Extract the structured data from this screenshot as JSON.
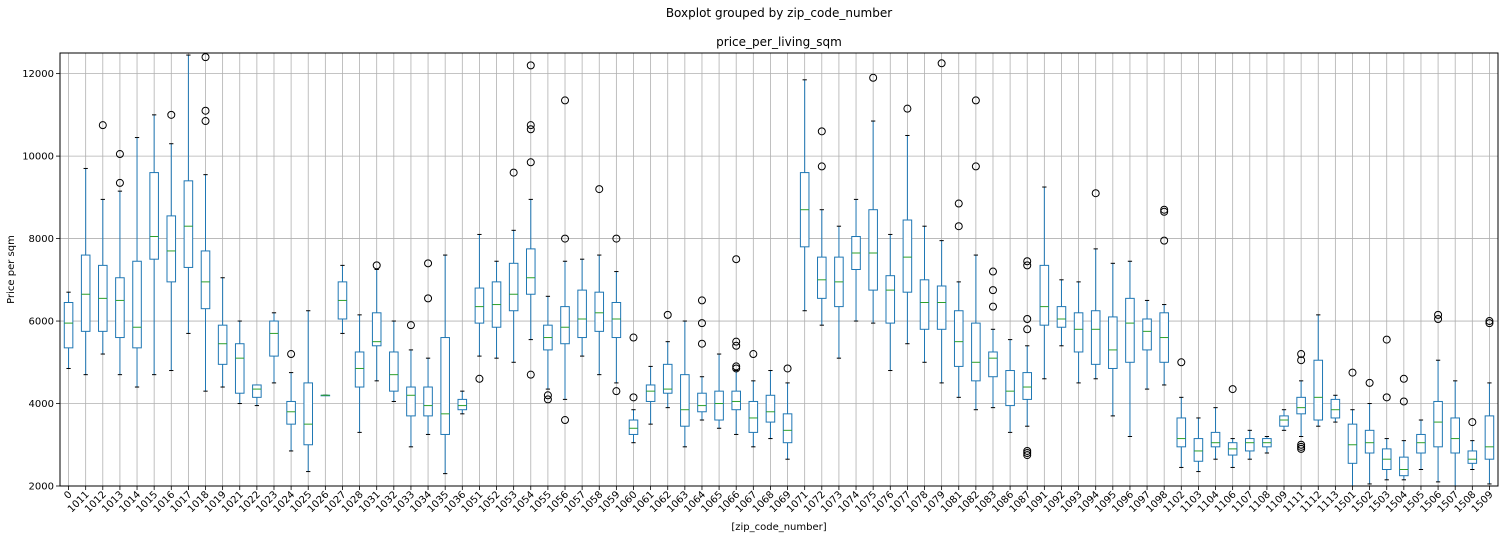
{
  "chart_data": {
    "type": "boxplot",
    "suptitle": "Boxplot grouped by zip_code_number",
    "title": "price_per_living_sqm",
    "xlabel": "[zip_code_number]",
    "ylabel": "Price per sqm",
    "ylim": [
      2000,
      12500
    ],
    "yticks": [
      2000,
      4000,
      6000,
      8000,
      10000,
      12000
    ],
    "grid": true,
    "colors": {
      "box": "#1f77b4",
      "median": "#2ca02c",
      "grid": "#b0b0b0",
      "outlier": "#000000"
    },
    "categories": [
      "0",
      "1011",
      "1012",
      "1013",
      "1014",
      "1015",
      "1016",
      "1017",
      "1018",
      "1019",
      "1021",
      "1022",
      "1023",
      "1024",
      "1025",
      "1026",
      "1027",
      "1028",
      "1031",
      "1032",
      "1033",
      "1034",
      "1035",
      "1036",
      "1051",
      "1052",
      "1053",
      "1054",
      "1055",
      "1056",
      "1057",
      "1058",
      "1059",
      "1060",
      "1061",
      "1062",
      "1063",
      "1064",
      "1065",
      "1066",
      "1067",
      "1068",
      "1069",
      "1071",
      "1072",
      "1073",
      "1074",
      "1075",
      "1076",
      "1077",
      "1078",
      "1079",
      "1081",
      "1082",
      "1083",
      "1086",
      "1087",
      "1091",
      "1092",
      "1093",
      "1094",
      "1095",
      "1096",
      "1097",
      "1098",
      "1102",
      "1103",
      "1104",
      "1106",
      "1107",
      "1108",
      "1109",
      "1111",
      "1112",
      "1113",
      "1501",
      "1502",
      "1503",
      "1504",
      "1505",
      "1506",
      "1507",
      "1508",
      "1509"
    ],
    "boxes": [
      {
        "wl": 4850,
        "q1": 5350,
        "med": 5950,
        "q3": 6450,
        "wh": 6700,
        "fl": []
      },
      {
        "wl": 4700,
        "q1": 5750,
        "med": 6650,
        "q3": 7600,
        "wh": 9700,
        "fl": []
      },
      {
        "wl": 5200,
        "q1": 5750,
        "med": 6550,
        "q3": 7350,
        "wh": 8950,
        "fl": [
          10750
        ]
      },
      {
        "wl": 4700,
        "q1": 5600,
        "med": 6500,
        "q3": 7050,
        "wh": 9150,
        "fl": [
          9350,
          10050
        ]
      },
      {
        "wl": 4400,
        "q1": 5350,
        "med": 5850,
        "q3": 7450,
        "wh": 10450,
        "fl": []
      },
      {
        "wl": 4700,
        "q1": 7500,
        "med": 8050,
        "q3": 9600,
        "wh": 11000,
        "fl": []
      },
      {
        "wl": 4800,
        "q1": 6950,
        "med": 7700,
        "q3": 8550,
        "wh": 10300,
        "fl": [
          11000
        ]
      },
      {
        "wl": 5700,
        "q1": 7300,
        "med": 8300,
        "q3": 9400,
        "wh": 12450,
        "fl": []
      },
      {
        "wl": 4300,
        "q1": 6300,
        "med": 6950,
        "q3": 7700,
        "wh": 9550,
        "fl": [
          10850,
          11100,
          12400
        ]
      },
      {
        "wl": 4400,
        "q1": 4950,
        "med": 5450,
        "q3": 5900,
        "wh": 7050,
        "fl": []
      },
      {
        "wl": 4000,
        "q1": 4250,
        "med": 5100,
        "q3": 5450,
        "wh": 6000,
        "fl": []
      },
      {
        "wl": 3950,
        "q1": 4150,
        "med": 4350,
        "q3": 4450,
        "wh": 4450,
        "fl": []
      },
      {
        "wl": 4500,
        "q1": 5150,
        "med": 5700,
        "q3": 6000,
        "wh": 6200,
        "fl": []
      },
      {
        "wl": 2850,
        "q1": 3500,
        "med": 3800,
        "q3": 4050,
        "wh": 4750,
        "fl": [
          5200
        ]
      },
      {
        "wl": 2350,
        "q1": 3000,
        "med": 3500,
        "q3": 4500,
        "wh": 6250,
        "fl": []
      },
      {
        "wl": 4200,
        "q1": 4200,
        "med": 4200,
        "q3": 4200,
        "wh": 4200,
        "fl": []
      },
      {
        "wl": 5700,
        "q1": 6050,
        "med": 6500,
        "q3": 6950,
        "wh": 7350,
        "fl": []
      },
      {
        "wl": 3300,
        "q1": 4400,
        "med": 4850,
        "q3": 5250,
        "wh": 6150,
        "fl": []
      },
      {
        "wl": 4550,
        "q1": 5400,
        "med": 5500,
        "q3": 6200,
        "wh": 7250,
        "fl": [
          7350
        ]
      },
      {
        "wl": 4050,
        "q1": 4300,
        "med": 4700,
        "q3": 5250,
        "wh": 6000,
        "fl": []
      },
      {
        "wl": 2950,
        "q1": 3700,
        "med": 4200,
        "q3": 4400,
        "wh": 5300,
        "fl": [
          5900
        ]
      },
      {
        "wl": 3250,
        "q1": 3700,
        "med": 3950,
        "q3": 4400,
        "wh": 5100,
        "fl": [
          6550,
          7400
        ]
      },
      {
        "wl": 2300,
        "q1": 3250,
        "med": 3750,
        "q3": 5600,
        "wh": 7600,
        "fl": []
      },
      {
        "wl": 3750,
        "q1": 3850,
        "med": 3950,
        "q3": 4100,
        "wh": 4300,
        "fl": []
      },
      {
        "wl": 5150,
        "q1": 5950,
        "med": 6350,
        "q3": 6800,
        "wh": 8100,
        "fl": [
          4600
        ]
      },
      {
        "wl": 5100,
        "q1": 5850,
        "med": 6400,
        "q3": 6950,
        "wh": 7450,
        "fl": []
      },
      {
        "wl": 5000,
        "q1": 6250,
        "med": 6650,
        "q3": 7400,
        "wh": 8200,
        "fl": [
          9600
        ]
      },
      {
        "wl": 5550,
        "q1": 6650,
        "med": 7050,
        "q3": 7750,
        "wh": 8950,
        "fl": [
          4700,
          9850,
          10650,
          10750,
          12200
        ]
      },
      {
        "wl": 4350,
        "q1": 5300,
        "med": 5600,
        "q3": 5900,
        "wh": 6600,
        "fl": [
          4100,
          4200
        ]
      },
      {
        "wl": 4100,
        "q1": 5450,
        "med": 5850,
        "q3": 6350,
        "wh": 7450,
        "fl": [
          3600,
          8000,
          11350
        ]
      },
      {
        "wl": 5150,
        "q1": 5600,
        "med": 6050,
        "q3": 6750,
        "wh": 7500,
        "fl": []
      },
      {
        "wl": 4700,
        "q1": 5750,
        "med": 6200,
        "q3": 6700,
        "wh": 7600,
        "fl": [
          9200
        ]
      },
      {
        "wl": 4500,
        "q1": 5600,
        "med": 6050,
        "q3": 6450,
        "wh": 7200,
        "fl": [
          4300,
          8000
        ]
      },
      {
        "wl": 3050,
        "q1": 3250,
        "med": 3400,
        "q3": 3600,
        "wh": 3850,
        "fl": [
          4150,
          5600
        ]
      },
      {
        "wl": 3500,
        "q1": 4050,
        "med": 4300,
        "q3": 4450,
        "wh": 4900,
        "fl": []
      },
      {
        "wl": 3900,
        "q1": 4250,
        "med": 4350,
        "q3": 4950,
        "wh": 5500,
        "fl": [
          6150
        ]
      },
      {
        "wl": 2950,
        "q1": 3450,
        "med": 3850,
        "q3": 4700,
        "wh": 6000,
        "fl": []
      },
      {
        "wl": 3600,
        "q1": 3800,
        "med": 3950,
        "q3": 4250,
        "wh": 4650,
        "fl": [
          5450,
          5950,
          6500
        ]
      },
      {
        "wl": 3400,
        "q1": 3600,
        "med": 4000,
        "q3": 4300,
        "wh": 5200,
        "fl": []
      },
      {
        "wl": 3250,
        "q1": 3850,
        "med": 4050,
        "q3": 4300,
        "wh": 4800,
        "fl": [
          4850,
          4900,
          5400,
          5500,
          7500
        ]
      },
      {
        "wl": 2950,
        "q1": 3300,
        "med": 3650,
        "q3": 4050,
        "wh": 4550,
        "fl": [
          5200
        ]
      },
      {
        "wl": 3150,
        "q1": 3550,
        "med": 3800,
        "q3": 4200,
        "wh": 4800,
        "fl": []
      },
      {
        "wl": 2650,
        "q1": 3050,
        "med": 3350,
        "q3": 3750,
        "wh": 4500,
        "fl": [
          4850
        ]
      },
      {
        "wl": 6250,
        "q1": 7800,
        "med": 8700,
        "q3": 9600,
        "wh": 11850,
        "fl": []
      },
      {
        "wl": 5900,
        "q1": 6550,
        "med": 7000,
        "q3": 7550,
        "wh": 8700,
        "fl": [
          9750,
          10600
        ]
      },
      {
        "wl": 5100,
        "q1": 6350,
        "med": 6950,
        "q3": 7550,
        "wh": 8300,
        "fl": []
      },
      {
        "wl": 6000,
        "q1": 7250,
        "med": 7650,
        "q3": 8050,
        "wh": 8950,
        "fl": []
      },
      {
        "wl": 5950,
        "q1": 6750,
        "med": 7650,
        "q3": 8700,
        "wh": 10850,
        "fl": [
          11900
        ]
      },
      {
        "wl": 4800,
        "q1": 5950,
        "med": 6750,
        "q3": 7100,
        "wh": 8100,
        "fl": []
      },
      {
        "wl": 5450,
        "q1": 6700,
        "med": 7550,
        "q3": 8450,
        "wh": 10500,
        "fl": [
          11150
        ]
      },
      {
        "wl": 5000,
        "q1": 5800,
        "med": 6450,
        "q3": 7000,
        "wh": 8300,
        "fl": []
      },
      {
        "wl": 4500,
        "q1": 5800,
        "med": 6450,
        "q3": 6850,
        "wh": 7950,
        "fl": [
          12250
        ]
      },
      {
        "wl": 4150,
        "q1": 4900,
        "med": 5500,
        "q3": 6250,
        "wh": 6950,
        "fl": [
          8300,
          8850
        ]
      },
      {
        "wl": 3850,
        "q1": 4550,
        "med": 5000,
        "q3": 5950,
        "wh": 7600,
        "fl": [
          9750,
          11350
        ]
      },
      {
        "wl": 3900,
        "q1": 4650,
        "med": 5100,
        "q3": 5250,
        "wh": 5800,
        "fl": [
          6350,
          6750,
          7200
        ]
      },
      {
        "wl": 3300,
        "q1": 3950,
        "med": 4300,
        "q3": 4800,
        "wh": 5550,
        "fl": []
      },
      {
        "wl": 3450,
        "q1": 4100,
        "med": 4400,
        "q3": 4750,
        "wh": 5400,
        "fl": [
          2750,
          2800,
          2850,
          5800,
          6050,
          7350,
          7450
        ]
      },
      {
        "wl": 4600,
        "q1": 5900,
        "med": 6350,
        "q3": 7350,
        "wh": 9250,
        "fl": []
      },
      {
        "wl": 5400,
        "q1": 5850,
        "med": 6050,
        "q3": 6350,
        "wh": 7000,
        "fl": []
      },
      {
        "wl": 4500,
        "q1": 5250,
        "med": 5800,
        "q3": 6200,
        "wh": 6950,
        "fl": []
      },
      {
        "wl": 4600,
        "q1": 4950,
        "med": 5800,
        "q3": 6250,
        "wh": 7750,
        "fl": [
          9100
        ]
      },
      {
        "wl": 3700,
        "q1": 4850,
        "med": 5300,
        "q3": 6100,
        "wh": 7400,
        "fl": []
      },
      {
        "wl": 3200,
        "q1": 5000,
        "med": 5950,
        "q3": 6550,
        "wh": 7450,
        "fl": []
      },
      {
        "wl": 4350,
        "q1": 5300,
        "med": 5750,
        "q3": 6050,
        "wh": 6500,
        "fl": []
      },
      {
        "wl": 4450,
        "q1": 5000,
        "med": 5600,
        "q3": 6200,
        "wh": 6400,
        "fl": [
          7950,
          8650,
          8700
        ]
      },
      {
        "wl": 2450,
        "q1": 2950,
        "med": 3150,
        "q3": 3650,
        "wh": 4150,
        "fl": [
          5000
        ]
      },
      {
        "wl": 2350,
        "q1": 2600,
        "med": 2850,
        "q3": 3150,
        "wh": 3650,
        "fl": []
      },
      {
        "wl": 2650,
        "q1": 2950,
        "med": 3050,
        "q3": 3300,
        "wh": 3900,
        "fl": []
      },
      {
        "wl": 2450,
        "q1": 2750,
        "med": 2900,
        "q3": 3050,
        "wh": 3150,
        "fl": [
          4350
        ]
      },
      {
        "wl": 2650,
        "q1": 2850,
        "med": 3050,
        "q3": 3150,
        "wh": 3350,
        "fl": []
      },
      {
        "wl": 2800,
        "q1": 2950,
        "med": 3050,
        "q3": 3150,
        "wh": 3200,
        "fl": []
      },
      {
        "wl": 3350,
        "q1": 3450,
        "med": 3600,
        "q3": 3700,
        "wh": 3850,
        "fl": []
      },
      {
        "wl": 3200,
        "q1": 3750,
        "med": 3900,
        "q3": 4150,
        "wh": 4550,
        "fl": [
          2900,
          2950,
          3000,
          5050,
          5200
        ]
      },
      {
        "wl": 3450,
        "q1": 3600,
        "med": 4150,
        "q3": 5050,
        "wh": 6150,
        "fl": []
      },
      {
        "wl": 3550,
        "q1": 3650,
        "med": 3850,
        "q3": 4100,
        "wh": 4200,
        "fl": []
      },
      {
        "wl": 1950,
        "q1": 2550,
        "med": 3000,
        "q3": 3500,
        "wh": 3850,
        "fl": [
          4750
        ]
      },
      {
        "wl": 2050,
        "q1": 2800,
        "med": 3050,
        "q3": 3350,
        "wh": 4000,
        "fl": [
          4500
        ]
      },
      {
        "wl": 2150,
        "q1": 2400,
        "med": 2650,
        "q3": 2900,
        "wh": 3150,
        "fl": [
          4150,
          5550
        ]
      },
      {
        "wl": 2150,
        "q1": 2250,
        "med": 2400,
        "q3": 2700,
        "wh": 3100,
        "fl": [
          4050,
          4600
        ]
      },
      {
        "wl": 2400,
        "q1": 2800,
        "med": 3050,
        "q3": 3250,
        "wh": 3600,
        "fl": []
      },
      {
        "wl": 2100,
        "q1": 2950,
        "med": 3550,
        "q3": 4050,
        "wh": 5050,
        "fl": [
          6050,
          6150
        ]
      },
      {
        "wl": 2000,
        "q1": 2800,
        "med": 3150,
        "q3": 3650,
        "wh": 4550,
        "fl": []
      },
      {
        "wl": 2400,
        "q1": 2550,
        "med": 2650,
        "q3": 2850,
        "wh": 3100,
        "fl": [
          3550
        ]
      },
      {
        "wl": 2050,
        "q1": 2650,
        "med": 2950,
        "q3": 3700,
        "wh": 4500,
        "fl": [
          5950,
          6000
        ]
      }
    ]
  }
}
